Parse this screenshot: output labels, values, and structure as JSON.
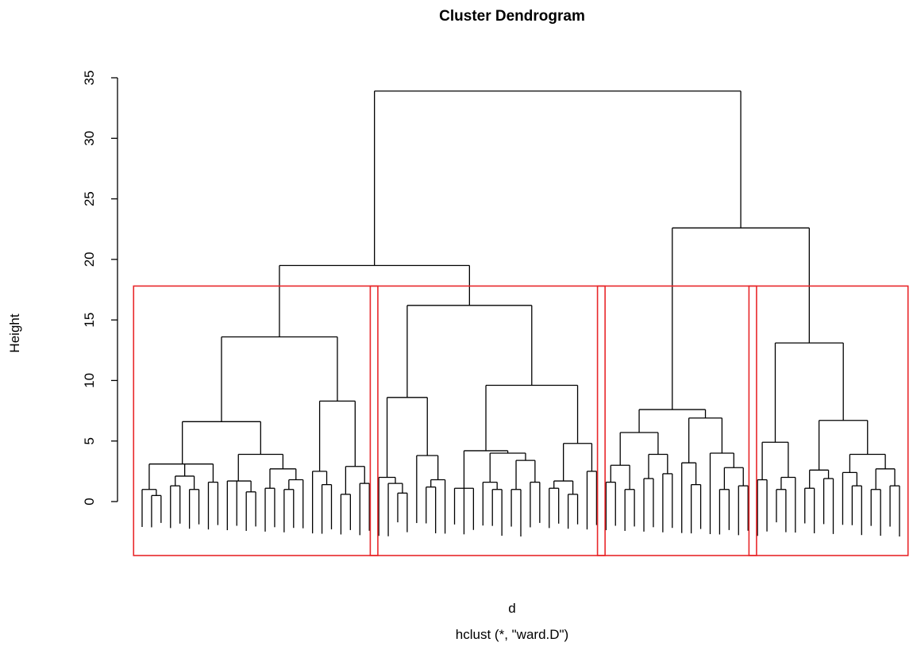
{
  "chart_data": {
    "type": "dendrogram",
    "title": "Cluster Dendrogram",
    "xlabel": "d",
    "sub": "hclust (*, \"ward.D\")",
    "ylabel": "Height",
    "ylim": [
      0,
      35
    ],
    "yticks": [
      "0",
      "5",
      "10",
      "15",
      "20",
      "25",
      "30",
      "35"
    ],
    "cut_height": 17.8,
    "cluster_count": 4,
    "colors": {
      "branch": "#000000",
      "cluster_box": "#e8272a"
    },
    "merge_heights": {
      "root": 33.9,
      "left_group": 19.5,
      "right_group": 22.6,
      "cluster_1": 13.6,
      "cluster_2": 16.2,
      "cluster_3": 7.6,
      "cluster_4": 13.1
    },
    "tree": {
      "h": 33.9,
      "c": [
        {
          "h": 19.5,
          "c": [
            {
              "h": 13.6,
              "c": [
                {
                  "h": 6.6,
                  "c": [
                    {
                      "h": 3.1,
                      "c": [
                        {
                          "h": 1.0,
                          "c": [
                            {
                              "l": 1
                            },
                            {
                              "h": 0.5,
                              "c": [
                                {
                                  "l": 1
                                },
                                {
                                  "l": 1
                                }
                              ]
                            }
                          ]
                        },
                        {
                          "h": 2.1,
                          "c": [
                            {
                              "h": 1.3,
                              "c": [
                                {
                                  "l": 1
                                },
                                {
                                  "l": 1
                                }
                              ]
                            },
                            {
                              "h": 1.0,
                              "c": [
                                {
                                  "l": 1
                                },
                                {
                                  "l": 1
                                }
                              ]
                            }
                          ]
                        },
                        {
                          "h": 1.6,
                          "c": [
                            {
                              "l": 1
                            },
                            {
                              "l": 1
                            }
                          ]
                        }
                      ]
                    },
                    {
                      "h": 3.9,
                      "c": [
                        {
                          "h": 1.7,
                          "c": [
                            {
                              "l": 1
                            },
                            {
                              "l": 1
                            },
                            {
                              "h": 0.8,
                              "c": [
                                {
                                  "l": 1
                                },
                                {
                                  "l": 1
                                }
                              ]
                            }
                          ]
                        },
                        {
                          "h": 2.7,
                          "c": [
                            {
                              "h": 1.1,
                              "c": [
                                {
                                  "l": 1
                                },
                                {
                                  "l": 1
                                }
                              ]
                            },
                            {
                              "h": 1.8,
                              "c": [
                                {
                                  "h": 1.0,
                                  "c": [
                                    {
                                      "l": 1
                                    },
                                    {
                                      "l": 1
                                    }
                                  ]
                                },
                                {
                                  "l": 1
                                }
                              ]
                            }
                          ]
                        }
                      ]
                    }
                  ]
                },
                {
                  "h": 8.3,
                  "c": [
                    {
                      "h": 2.5,
                      "c": [
                        {
                          "l": 1
                        },
                        {
                          "h": 1.4,
                          "c": [
                            {
                              "l": 1
                            },
                            {
                              "l": 1
                            }
                          ]
                        }
                      ]
                    },
                    {
                      "h": 2.9,
                      "c": [
                        {
                          "h": 0.6,
                          "c": [
                            {
                              "l": 1
                            },
                            {
                              "l": 1
                            }
                          ]
                        },
                        {
                          "h": 1.5,
                          "c": [
                            {
                              "l": 1
                            },
                            {
                              "l": 1
                            }
                          ]
                        }
                      ]
                    }
                  ]
                }
              ]
            },
            {
              "h": 16.2,
              "c": [
                {
                  "h": 8.6,
                  "c": [
                    {
                      "h": 2.0,
                      "c": [
                        {
                          "l": 1
                        },
                        {
                          "h": 1.5,
                          "c": [
                            {
                              "l": 1
                            },
                            {
                              "h": 0.7,
                              "c": [
                                {
                                  "l": 1
                                },
                                {
                                  "l": 1
                                }
                              ]
                            }
                          ]
                        }
                      ]
                    },
                    {
                      "h": 3.8,
                      "c": [
                        {
                          "l": 1
                        },
                        {
                          "h": 1.8,
                          "c": [
                            {
                              "h": 1.2,
                              "c": [
                                {
                                  "l": 1
                                },
                                {
                                  "l": 1
                                }
                              ]
                            },
                            {
                              "l": 1
                            }
                          ]
                        }
                      ]
                    }
                  ]
                },
                {
                  "h": 9.6,
                  "c": [
                    {
                      "h": 4.2,
                      "c": [
                        {
                          "h": 1.1,
                          "c": [
                            {
                              "l": 1
                            },
                            {
                              "l": 1
                            },
                            {
                              "l": 1
                            }
                          ]
                        },
                        {
                          "h": 4.0,
                          "c": [
                            {
                              "h": 1.6,
                              "c": [
                                {
                                  "l": 1
                                },
                                {
                                  "h": 1.0,
                                  "c": [
                                    {
                                      "l": 1
                                    },
                                    {
                                      "l": 1
                                    }
                                  ]
                                }
                              ]
                            },
                            {
                              "h": 3.4,
                              "c": [
                                {
                                  "h": 1.0,
                                  "c": [
                                    {
                                      "l": 1
                                    },
                                    {
                                      "l": 1
                                    }
                                  ]
                                },
                                {
                                  "h": 1.6,
                                  "c": [
                                    {
                                      "l": 1
                                    },
                                    {
                                      "l": 1
                                    }
                                  ]
                                }
                              ]
                            }
                          ]
                        }
                      ]
                    },
                    {
                      "h": 4.8,
                      "c": [
                        {
                          "h": 1.7,
                          "c": [
                            {
                              "h": 1.1,
                              "c": [
                                {
                                  "l": 1
                                },
                                {
                                  "l": 1
                                }
                              ]
                            },
                            {
                              "h": 0.6,
                              "c": [
                                {
                                  "l": 1
                                },
                                {
                                  "l": 1
                                }
                              ]
                            }
                          ]
                        },
                        {
                          "h": 2.5,
                          "c": [
                            {
                              "l": 1
                            },
                            {
                              "l": 1
                            }
                          ]
                        }
                      ]
                    }
                  ]
                }
              ]
            }
          ]
        },
        {
          "h": 22.6,
          "c": [
            {
              "h": 7.6,
              "c": [
                {
                  "h": 5.7,
                  "c": [
                    {
                      "h": 3.0,
                      "c": [
                        {
                          "h": 1.6,
                          "c": [
                            {
                              "l": 1
                            },
                            {
                              "l": 1
                            }
                          ]
                        },
                        {
                          "h": 1.0,
                          "c": [
                            {
                              "l": 1
                            },
                            {
                              "l": 1
                            }
                          ]
                        }
                      ]
                    },
                    {
                      "h": 3.9,
                      "c": [
                        {
                          "h": 1.9,
                          "c": [
                            {
                              "l": 1
                            },
                            {
                              "l": 1
                            }
                          ]
                        },
                        {
                          "h": 2.3,
                          "c": [
                            {
                              "l": 1
                            },
                            {
                              "l": 1
                            }
                          ]
                        }
                      ]
                    }
                  ]
                },
                {
                  "h": 6.9,
                  "c": [
                    {
                      "h": 3.2,
                      "c": [
                        {
                          "l": 1
                        },
                        {
                          "h": 1.4,
                          "c": [
                            {
                              "l": 1
                            },
                            {
                              "l": 1
                            }
                          ]
                        }
                      ]
                    },
                    {
                      "h": 4.0,
                      "c": [
                        {
                          "l": 1
                        },
                        {
                          "h": 2.8,
                          "c": [
                            {
                              "h": 1.0,
                              "c": [
                                {
                                  "l": 1
                                },
                                {
                                  "l": 1
                                }
                              ]
                            },
                            {
                              "h": 1.3,
                              "c": [
                                {
                                  "l": 1
                                },
                                {
                                  "l": 1
                                }
                              ]
                            }
                          ]
                        }
                      ]
                    }
                  ]
                }
              ]
            },
            {
              "h": 13.1,
              "c": [
                {
                  "h": 4.9,
                  "c": [
                    {
                      "h": 1.8,
                      "c": [
                        {
                          "l": 1
                        },
                        {
                          "l": 1
                        }
                      ]
                    },
                    {
                      "h": 2.0,
                      "c": [
                        {
                          "h": 1.0,
                          "c": [
                            {
                              "l": 1
                            },
                            {
                              "l": 1
                            }
                          ]
                        },
                        {
                          "l": 1
                        }
                      ]
                    }
                  ]
                },
                {
                  "h": 6.7,
                  "c": [
                    {
                      "h": 2.6,
                      "c": [
                        {
                          "h": 1.1,
                          "c": [
                            {
                              "l": 1
                            },
                            {
                              "l": 1
                            }
                          ]
                        },
                        {
                          "h": 1.9,
                          "c": [
                            {
                              "l": 1
                            },
                            {
                              "l": 1
                            }
                          ]
                        }
                      ]
                    },
                    {
                      "h": 3.9,
                      "c": [
                        {
                          "h": 2.4,
                          "c": [
                            {
                              "l": 1
                            },
                            {
                              "h": 1.3,
                              "c": [
                                {
                                  "l": 1
                                },
                                {
                                  "l": 1
                                }
                              ]
                            }
                          ]
                        },
                        {
                          "h": 2.7,
                          "c": [
                            {
                              "h": 1.0,
                              "c": [
                                {
                                  "l": 1
                                },
                                {
                                  "l": 1
                                }
                              ]
                            },
                            {
                              "h": 1.3,
                              "c": [
                                {
                                  "l": 1
                                },
                                {
                                  "l": 1
                                }
                              ]
                            }
                          ]
                        }
                      ]
                    }
                  ]
                }
              ]
            }
          ]
        }
      ]
    }
  }
}
